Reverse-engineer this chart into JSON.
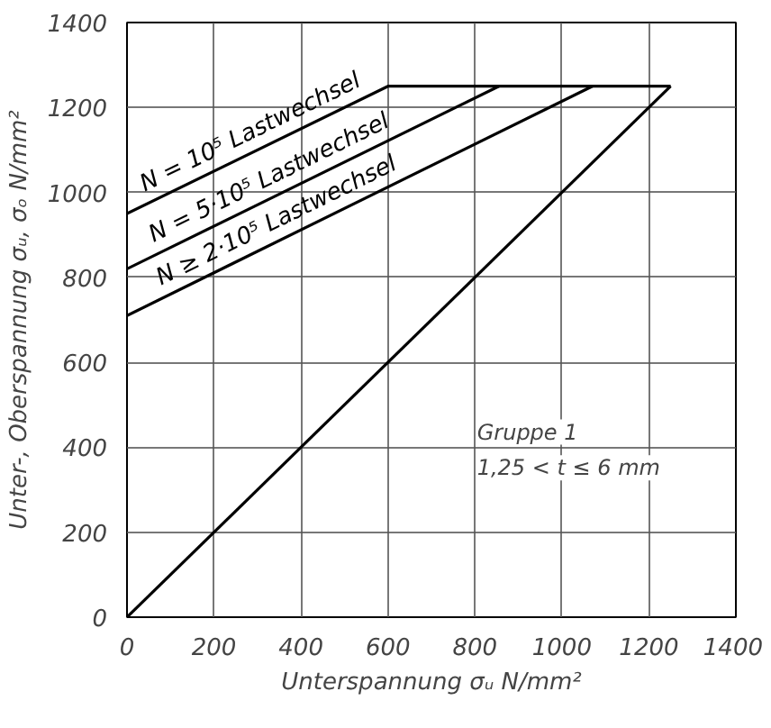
{
  "chart_data": {
    "type": "line",
    "xlabel": "Unterspannung σᵤ N/mm²",
    "ylabel": "Unter-, Oberspannung σᵤ, σₒ N/mm²",
    "series": [
      {
        "name": "N = 10⁵ Lastwechsel",
        "color": "#000000",
        "x": [
          0,
          600,
          1250
        ],
        "values": [
          950,
          1250,
          1250
        ]
      },
      {
        "name": "N = 5·10⁵ Lastwechsel",
        "color": "#000000",
        "x": [
          0,
          855
        ],
        "values": [
          820,
          1250
        ]
      },
      {
        "name": "N ≥ 2·10⁵ Lastwechsel",
        "color": "#000000",
        "x": [
          0,
          1070
        ],
        "values": [
          710,
          1250
        ]
      },
      {
        "color": "#000000",
        "x": [
          0,
          1250
        ],
        "values": [
          0,
          1250
        ]
      }
    ],
    "annotations": [
      "Gruppe 1",
      "1,25 < t ≤ 6 mm"
    ],
    "xlim": [
      0,
      1400
    ],
    "ylim": [
      0,
      1400
    ],
    "xticks": [
      0,
      200,
      400,
      600,
      800,
      1000,
      1200,
      1400
    ],
    "yticks": [
      0,
      200,
      400,
      600,
      800,
      1000,
      1200,
      1400
    ],
    "grid": true,
    "marker": "none",
    "line_style": "solid"
  }
}
